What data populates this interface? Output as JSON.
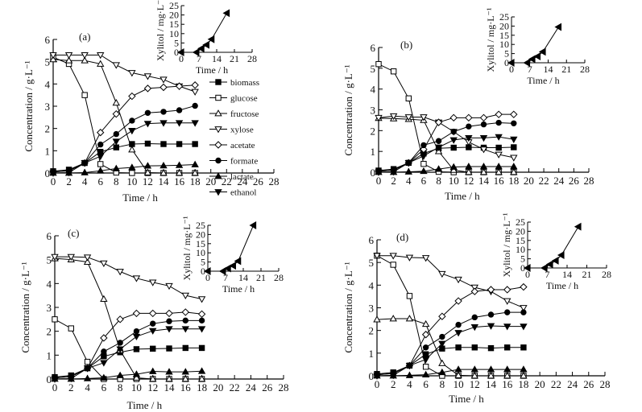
{
  "chart_data": {
    "type": "line",
    "panels": [
      {
        "label": "(a)",
        "xlabel": "Time / h",
        "ylabel": "Concentration / g·L⁻¹",
        "xlim": [
          0,
          28
        ],
        "ylim": [
          0,
          6
        ],
        "xticks": [
          0,
          2,
          4,
          6,
          8,
          10,
          12,
          14,
          16,
          18,
          20,
          22,
          24,
          26,
          28
        ],
        "yticks": [
          0,
          1,
          2,
          3,
          4,
          5,
          6
        ],
        "x": [
          0,
          2,
          4,
          6,
          8,
          10,
          12,
          14,
          16,
          18
        ],
        "series": [
          {
            "name": "biomass",
            "marker": "square-filled",
            "values": [
              0.08,
              0.15,
              0.45,
              0.95,
              1.15,
              1.3,
              1.32,
              1.3,
              1.3,
              1.3
            ]
          },
          {
            "name": "glucose",
            "marker": "square-open",
            "values": [
              5.2,
              4.9,
              3.5,
              0.4,
              0.02,
              0.0,
              0.0,
              0.0,
              0.0,
              0.0
            ]
          },
          {
            "name": "fructose",
            "marker": "triangle-up-open",
            "values": [
              5.1,
              5.05,
              5.05,
              4.9,
              3.15,
              1.05,
              0.02,
              0.0,
              0.0,
              0.0
            ]
          },
          {
            "name": "xylose",
            "marker": "triangle-down-open",
            "values": [
              5.3,
              5.3,
              5.3,
              5.3,
              4.85,
              4.5,
              4.35,
              4.2,
              3.9,
              3.65
            ]
          },
          {
            "name": "acetate",
            "marker": "diamond-open",
            "values": [
              0.05,
              0.1,
              0.45,
              1.82,
              2.65,
              3.45,
              3.8,
              3.85,
              3.9,
              3.95
            ]
          },
          {
            "name": "formate",
            "marker": "circle-filled",
            "values": [
              0.05,
              0.1,
              0.45,
              1.28,
              1.75,
              2.35,
              2.7,
              2.75,
              2.82,
              3.02
            ]
          },
          {
            "name": "lactate",
            "marker": "triangle-up-filled",
            "values": [
              0.0,
              0.0,
              0.02,
              0.1,
              0.2,
              0.25,
              0.32,
              0.33,
              0.35,
              0.38
            ]
          },
          {
            "name": "ethanol",
            "marker": "triangle-down-filled",
            "values": [
              0.0,
              0.02,
              0.45,
              0.75,
              1.42,
              1.9,
              2.22,
              2.25,
              2.25,
              2.25
            ]
          }
        ],
        "legend": [
          "biomass",
          "glucose",
          "fructose",
          "xylose",
          "acetate",
          "formate",
          "lactate",
          "ethanol"
        ],
        "legend_position": "right",
        "inset": {
          "xlabel": "Time / h",
          "ylabel": "Xylitol / mg·L⁻¹",
          "xlim": [
            0,
            28
          ],
          "ylim": [
            0,
            25
          ],
          "xticks": [
            0,
            7,
            14,
            21,
            28
          ],
          "yticks": [
            0,
            5,
            10,
            15,
            20,
            25
          ],
          "x": [
            0,
            6,
            8,
            10,
            12,
            18
          ],
          "values": [
            0,
            0,
            2,
            4,
            7,
            21
          ]
        }
      },
      {
        "label": "(b)",
        "xlabel": "Time / h",
        "ylabel": "Concentration / g·L⁻¹",
        "xlim": [
          0,
          28
        ],
        "ylim": [
          0,
          6
        ],
        "xticks": [
          0,
          2,
          4,
          6,
          8,
          10,
          12,
          14,
          16,
          18,
          20,
          22,
          24,
          26,
          28
        ],
        "yticks": [
          0,
          1,
          2,
          3,
          4,
          5,
          6
        ],
        "x": [
          0,
          2,
          4,
          6,
          8,
          10,
          12,
          14,
          16,
          18
        ],
        "series": [
          {
            "name": "biomass",
            "marker": "square-filled",
            "values": [
              0.08,
              0.15,
              0.45,
              0.9,
              1.15,
              1.18,
              1.2,
              1.18,
              1.18,
              1.2
            ]
          },
          {
            "name": "glucose",
            "marker": "square-open",
            "values": [
              5.2,
              4.85,
              3.55,
              0.4,
              0.02,
              0.0,
              0.0,
              0.0,
              0.0,
              0.0
            ]
          },
          {
            "name": "fructose",
            "marker": "triangle-up-open",
            "values": [
              2.6,
              2.58,
              2.55,
              2.5,
              1.0,
              0.1,
              0.0,
              0.0,
              0.0,
              0.0
            ]
          },
          {
            "name": "xylose",
            "marker": "triangle-down-open",
            "values": [
              2.62,
              2.7,
              2.65,
              2.65,
              2.4,
              1.95,
              1.45,
              1.1,
              0.85,
              0.7
            ]
          },
          {
            "name": "acetate",
            "marker": "diamond-open",
            "values": [
              0.05,
              0.1,
              0.45,
              1.1,
              2.4,
              2.62,
              2.62,
              2.62,
              2.78,
              2.78
            ]
          },
          {
            "name": "formate",
            "marker": "circle-filled",
            "values": [
              0.05,
              0.1,
              0.45,
              1.3,
              1.5,
              1.95,
              2.2,
              2.3,
              2.38,
              2.35
            ]
          },
          {
            "name": "lactate",
            "marker": "triangle-up-filled",
            "values": [
              0.0,
              0.0,
              0.02,
              0.05,
              0.15,
              0.25,
              0.27,
              0.27,
              0.27,
              0.27
            ]
          },
          {
            "name": "ethanol",
            "marker": "triangle-down-filled",
            "values": [
              0.0,
              0.02,
              0.45,
              0.78,
              1.2,
              1.55,
              1.65,
              1.65,
              1.7,
              1.58
            ]
          }
        ],
        "inset": {
          "xlabel": "Time / h",
          "ylabel": "Xylitol / mg·L⁻¹",
          "xlim": [
            0,
            28
          ],
          "ylim": [
            0,
            25
          ],
          "xticks": [
            0,
            7,
            14,
            21,
            28
          ],
          "yticks": [
            0,
            5,
            10,
            15,
            20,
            25
          ],
          "x": [
            0,
            6,
            8,
            10,
            12,
            18
          ],
          "values": [
            0,
            0,
            2,
            3.5,
            6,
            19.5
          ]
        }
      },
      {
        "label": "(c)",
        "xlabel": "Time / h",
        "ylabel": "Concentration / g·L⁻¹",
        "xlim": [
          0,
          28
        ],
        "ylim": [
          0,
          6
        ],
        "xticks": [
          0,
          2,
          4,
          6,
          8,
          10,
          12,
          14,
          16,
          18,
          20,
          22,
          24,
          26,
          28
        ],
        "yticks": [
          0,
          1,
          2,
          3,
          4,
          5,
          6
        ],
        "x": [
          0,
          2,
          4,
          6,
          8,
          10,
          12,
          14,
          16,
          18
        ],
        "series": [
          {
            "name": "biomass",
            "marker": "square-filled",
            "values": [
              0.08,
              0.15,
              0.45,
              0.95,
              1.12,
              1.25,
              1.27,
              1.28,
              1.3,
              1.3
            ]
          },
          {
            "name": "glucose",
            "marker": "square-open",
            "values": [
              2.5,
              2.12,
              0.72,
              0.0,
              0.0,
              0.0,
              0.0,
              0.0,
              0.0,
              0.0
            ]
          },
          {
            "name": "fructose",
            "marker": "triangle-up-open",
            "values": [
              5.05,
              5.0,
              4.9,
              3.35,
              1.2,
              0.05,
              0.0,
              0.0,
              0.0,
              0.0
            ]
          },
          {
            "name": "xylose",
            "marker": "triangle-down-open",
            "values": [
              5.12,
              5.12,
              5.1,
              4.85,
              4.5,
              4.22,
              4.05,
              3.9,
              3.5,
              3.35
            ]
          },
          {
            "name": "acetate",
            "marker": "diamond-open",
            "values": [
              0.05,
              0.1,
              0.45,
              1.72,
              2.5,
              2.75,
              2.75,
              2.75,
              2.8,
              2.72
            ]
          },
          {
            "name": "formate",
            "marker": "circle-filled",
            "values": [
              0.05,
              0.1,
              0.45,
              1.15,
              1.52,
              2.0,
              2.32,
              2.42,
              2.45,
              2.45
            ]
          },
          {
            "name": "lactate",
            "marker": "triangle-up-filled",
            "values": [
              0.0,
              0.0,
              0.02,
              0.05,
              0.15,
              0.2,
              0.32,
              0.3,
              0.3,
              0.33
            ]
          },
          {
            "name": "ethanol",
            "marker": "triangle-down-filled",
            "values": [
              0.0,
              0.02,
              0.45,
              0.68,
              1.25,
              1.78,
              2.02,
              2.1,
              2.1,
              2.1
            ]
          }
        ],
        "inset": {
          "xlabel": "Time / h",
          "ylabel": "Xylitol / mg·L⁻¹",
          "xlim": [
            0,
            28
          ],
          "ylim": [
            0,
            25
          ],
          "xticks": [
            0,
            7,
            14,
            21,
            28
          ],
          "yticks": [
            0,
            5,
            10,
            15,
            20,
            25
          ],
          "x": [
            0,
            6,
            8,
            10,
            12,
            18
          ],
          "values": [
            0,
            0,
            1.5,
            3,
            5.5,
            25
          ]
        }
      },
      {
        "label": "(d)",
        "xlabel": "Time / h",
        "ylabel": "Concentration / g·L⁻¹",
        "xlim": [
          0,
          28
        ],
        "ylim": [
          0,
          6
        ],
        "xticks": [
          0,
          2,
          4,
          6,
          8,
          10,
          12,
          14,
          16,
          18,
          20,
          22,
          24,
          26,
          28
        ],
        "yticks": [
          0,
          1,
          2,
          3,
          4,
          5,
          6
        ],
        "x": [
          0,
          2,
          4,
          6,
          8,
          10,
          12,
          14,
          16,
          18
        ],
        "series": [
          {
            "name": "biomass",
            "marker": "square-filled",
            "values": [
              0.08,
              0.15,
              0.45,
              0.95,
              1.2,
              1.25,
              1.25,
              1.22,
              1.25,
              1.25
            ]
          },
          {
            "name": "glucose",
            "marker": "square-open",
            "values": [
              5.3,
              4.9,
              3.52,
              0.4,
              0.0,
              0.0,
              0.0,
              0.0,
              0.0,
              0.0
            ]
          },
          {
            "name": "fructose",
            "marker": "triangle-up-open",
            "values": [
              2.48,
              2.52,
              2.52,
              2.28,
              0.55,
              0.02,
              0.0,
              0.0,
              0.0,
              0.0
            ]
          },
          {
            "name": "xylose",
            "marker": "triangle-down-open",
            "values": [
              5.3,
              5.3,
              5.22,
              5.2,
              4.5,
              4.25,
              3.9,
              3.72,
              3.3,
              3.0
            ]
          },
          {
            "name": "acetate",
            "marker": "diamond-open",
            "values": [
              0.05,
              0.1,
              0.45,
              1.82,
              2.62,
              3.3,
              3.72,
              3.8,
              3.8,
              3.92
            ]
          },
          {
            "name": "formate",
            "marker": "circle-filled",
            "values": [
              0.05,
              0.1,
              0.45,
              1.25,
              1.72,
              2.25,
              2.58,
              2.7,
              2.8,
              2.8
            ]
          },
          {
            "name": "lactate",
            "marker": "triangle-up-filled",
            "values": [
              0.0,
              0.0,
              0.02,
              0.05,
              0.15,
              0.28,
              0.28,
              0.28,
              0.28,
              0.28
            ]
          },
          {
            "name": "ethanol",
            "marker": "triangle-down-filled",
            "values": [
              0.0,
              0.02,
              0.45,
              0.72,
              1.42,
              1.9,
              2.15,
              2.2,
              2.18,
              2.18
            ]
          }
        ],
        "inset": {
          "xlabel": "Time / h",
          "ylabel": "Xylitol / mg·L⁻¹",
          "xlim": [
            0,
            28
          ],
          "ylim": [
            0,
            25
          ],
          "xticks": [
            0,
            7,
            14,
            21,
            28
          ],
          "yticks": [
            0,
            5,
            10,
            15,
            20,
            25
          ],
          "x": [
            0,
            6,
            8,
            10,
            12,
            18
          ],
          "values": [
            0,
            0,
            2,
            4,
            7,
            22.5
          ]
        }
      }
    ]
  }
}
